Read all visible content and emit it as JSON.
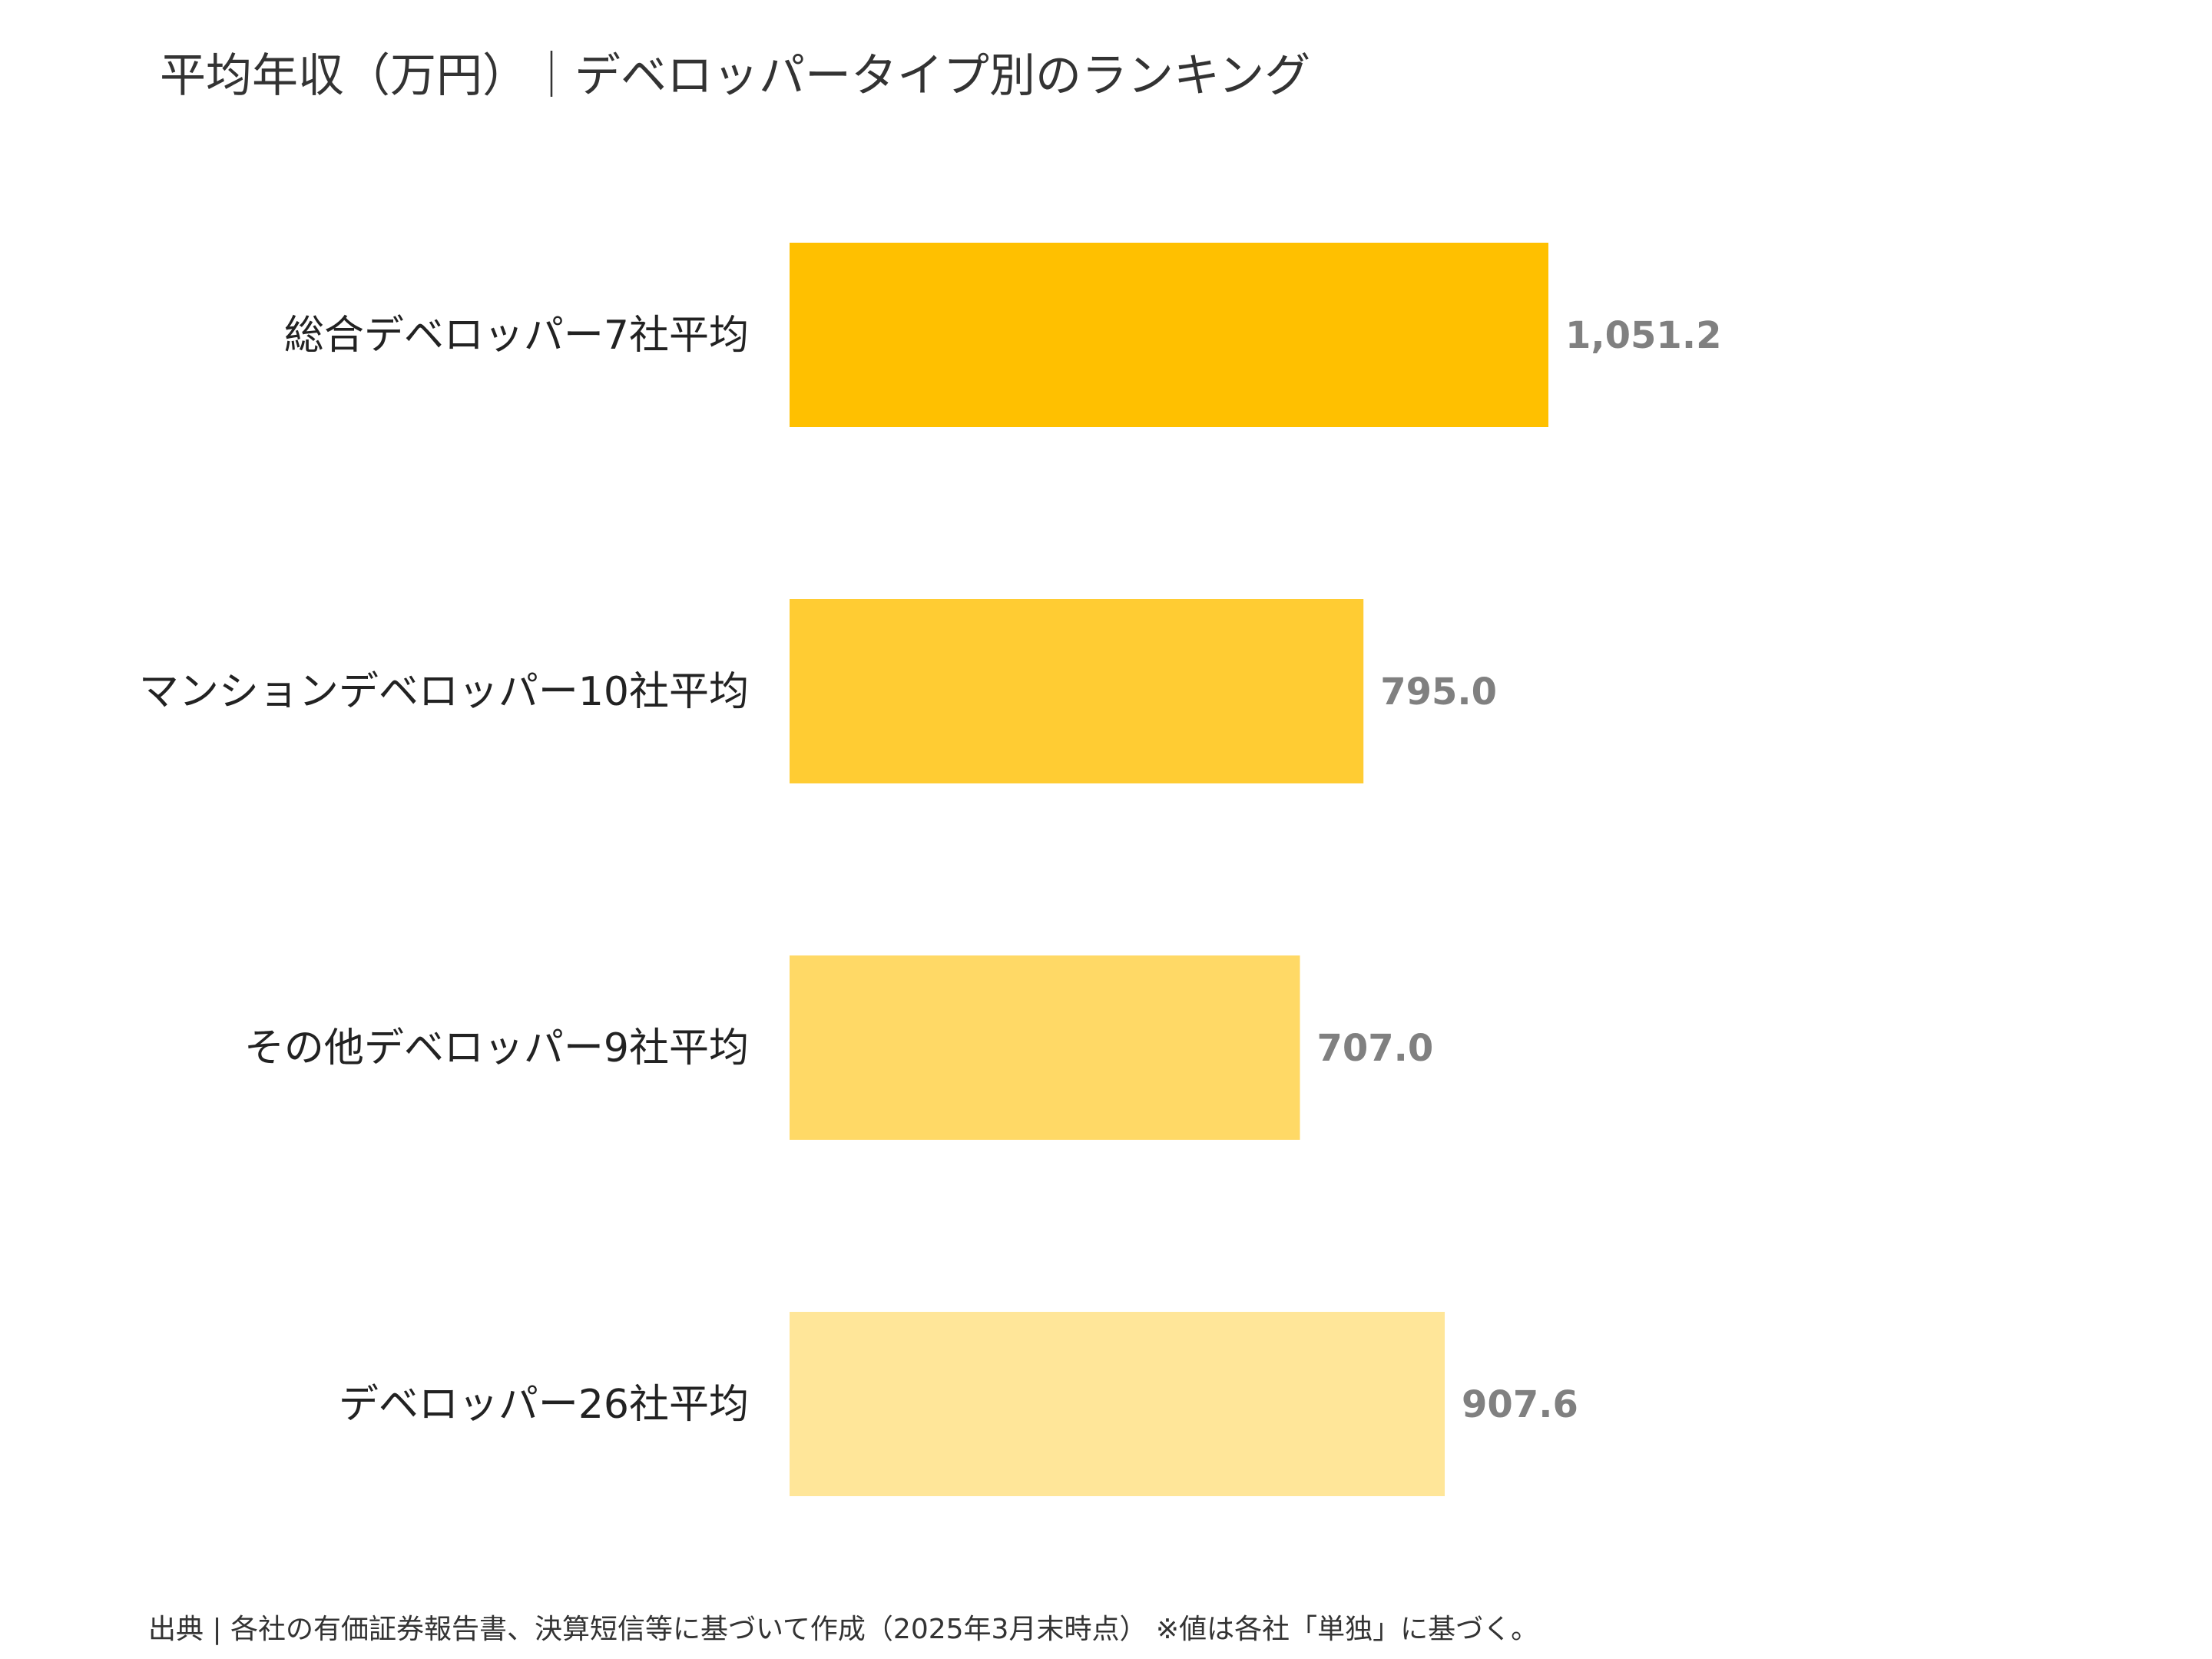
{
  "chart_data": {
    "type": "bar",
    "orientation": "horizontal",
    "title": "平均年収（万円）｜デベロッパータイプ別のランキング",
    "categories": [
      "総合デベロッパー7社平均",
      "マンションデベロッパー10社平均",
      "その他デベロッパー9社平均",
      "デベロッパー26社平均"
    ],
    "values": [
      1051.2,
      795.0,
      707.0,
      907.6
    ],
    "value_labels": [
      "1,051.2",
      "795.0",
      "707.0",
      "907.6"
    ],
    "bar_colors": [
      "#FFC000",
      "#FFCC33",
      "#FFD966",
      "#FFE699"
    ],
    "xlabel": "",
    "ylabel": "",
    "xlim": [
      0,
      1051.2
    ],
    "grid": false,
    "legend": "none"
  },
  "source": "出典 | 各社の有価証券報告書、決算短信等に基づいて作成（2025年3月末時点） ※値は各社「単独」に基づく。"
}
